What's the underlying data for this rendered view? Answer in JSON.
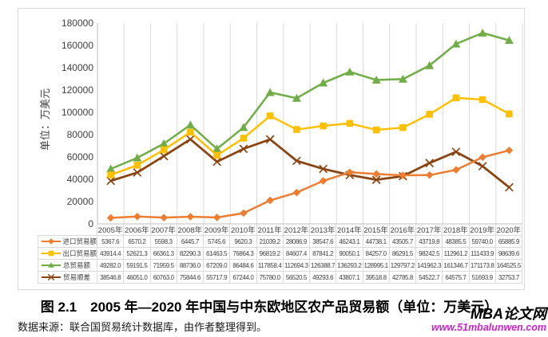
{
  "chart_data": {
    "type": "line",
    "title": "",
    "ylabel": "单位：万美元",
    "ylim": [
      0,
      180000
    ],
    "ytick_step": 20000,
    "yticks": [
      0,
      20000,
      40000,
      60000,
      80000,
      100000,
      120000,
      140000,
      160000,
      180000
    ],
    "grid": "vertical-only",
    "legend_position": "data-table-left-column",
    "categories": [
      "2005年",
      "2006年",
      "2007年",
      "2008年",
      "2009年",
      "2010年",
      "2011年",
      "2012年",
      "2013年",
      "2014年",
      "2015年",
      "2016年",
      "2017年",
      "2018年",
      "2019年",
      "2020年"
    ],
    "series": [
      {
        "name": "进口贸易额",
        "color": "#ED7D31",
        "marker": "diamond",
        "values": [
          5367.6,
          6570.2,
          5598.3,
          6445.7,
          5745.6,
          9620.3,
          21039.2,
          28086.9,
          38547.6,
          46243.1,
          44738.1,
          43505.7,
          43719.8,
          48385.5,
          59740.0,
          65885.9
        ]
      },
      {
        "name": "出口贸易额",
        "color": "#FFC000",
        "marker": "square",
        "values": [
          43914.4,
          52621.3,
          66361.3,
          82290.3,
          61463.5,
          76864.3,
          96819.2,
          84607.4,
          87841.2,
          90050.1,
          84257.0,
          86291.5,
          98242.5,
          112961.2,
          111433.9,
          98639.6
        ]
      },
      {
        "name": "总贸易额",
        "color": "#70AD47",
        "marker": "triangle",
        "values": [
          49282.0,
          59191.5,
          71959.5,
          88736.0,
          67209.0,
          86484.6,
          117858.4,
          112694.3,
          126388.7,
          136293.2,
          128995.1,
          129797.2,
          141962.3,
          161346.7,
          171173.8,
          164525.5
        ]
      },
      {
        "name": "贸易顺差",
        "color": "#8B4513",
        "marker": "x",
        "values": [
          38546.8,
          46051.0,
          60763.0,
          75844.6,
          55717.9,
          67244.0,
          75780.0,
          56520.5,
          49293.6,
          43807.1,
          39518.8,
          42785.8,
          54522.7,
          64575.7,
          51693.9,
          32753.7
        ]
      }
    ]
  },
  "caption": "图 2.1　2005 年—2020 年中国与中东欧地区农产品贸易额（单位：万美元）",
  "source_note": "数据来源：联合国贸易统计数据库，由作者整理得到。",
  "watermark": {
    "title": "MBA论文网",
    "url": "www.51mbalunwen.com",
    "url_color": "#cc22cc"
  }
}
